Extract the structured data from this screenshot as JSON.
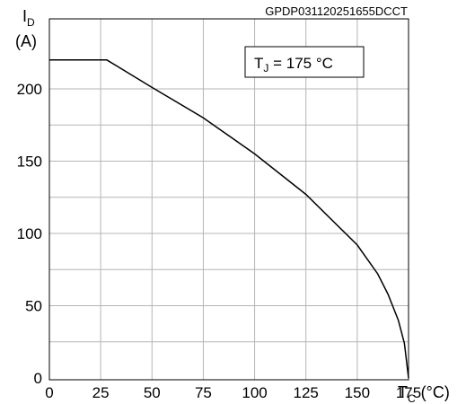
{
  "chart_data": {
    "type": "line",
    "code": "GPDP031120251655DCCT",
    "annotation": {
      "main": "T",
      "sub": "J",
      "rest": " = 175 °C"
    },
    "y_axis": {
      "symbol": "I",
      "sub": "D",
      "unit": "(A)"
    },
    "x_axis": {
      "symbol": "T",
      "sub": "C",
      "unit": "(°C)"
    },
    "xlim": [
      0,
      175
    ],
    "ylim": [
      0,
      220
    ],
    "x_ticks": [
      0,
      25,
      50,
      75,
      100,
      125,
      150,
      175
    ],
    "y_ticks": [
      0,
      50,
      100,
      150,
      200
    ],
    "grid": true,
    "series": [
      {
        "x": [
          0,
          28,
          50,
          75,
          100,
          125,
          150,
          160,
          165,
          170,
          173,
          175
        ],
        "y": [
          220,
          220,
          201,
          180,
          155,
          127,
          92,
          72,
          58,
          40,
          24,
          0
        ]
      }
    ]
  }
}
